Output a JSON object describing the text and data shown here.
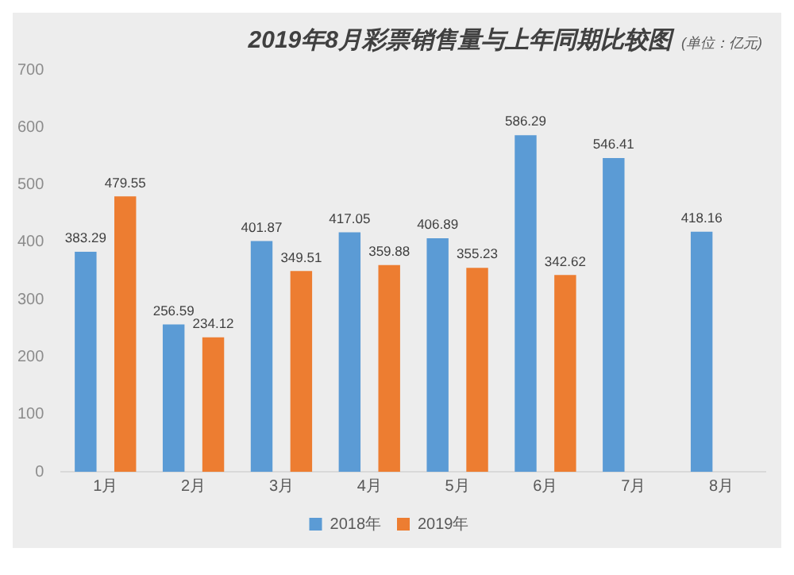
{
  "chart_data": {
    "type": "bar",
    "title": "2019年8月彩票销售量与上年同期比较图",
    "subtitle": "(单位：亿元)",
    "categories": [
      "1月",
      "2月",
      "3月",
      "4月",
      "5月",
      "6月",
      "7月",
      "8月"
    ],
    "series": [
      {
        "name": "2018年",
        "color": "#5b9bd5",
        "values": [
          383.29,
          256.59,
          401.87,
          417.05,
          406.89,
          586.29,
          546.41,
          418.16
        ],
        "value_labels": [
          "383.29",
          "256.59",
          "401.87",
          "417.05",
          "406.89",
          "586.29",
          "546.41",
          "418.16"
        ]
      },
      {
        "name": "2019年",
        "color": "#ed7d31",
        "values": [
          479.55,
          234.12,
          349.51,
          359.88,
          355.23,
          342.62,
          null,
          null
        ],
        "value_labels": [
          "479.55",
          "234.12",
          "349.51",
          "359.88",
          "355.23",
          "342.62",
          null,
          null
        ]
      }
    ],
    "ylim": [
      0,
      700
    ],
    "yticks": [
      0,
      100,
      200,
      300,
      400,
      500,
      600,
      700
    ],
    "grid": false,
    "legend": "bottom"
  }
}
